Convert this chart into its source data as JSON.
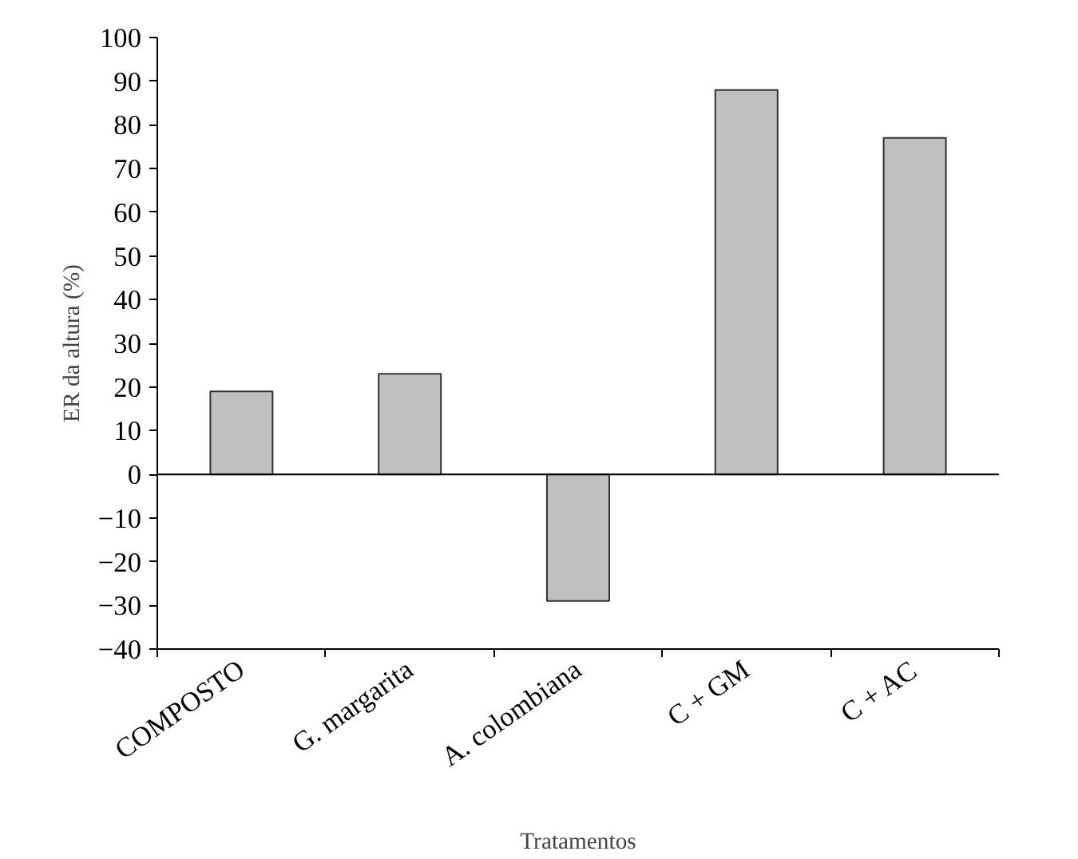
{
  "chart_data": {
    "type": "bar",
    "xlabel": "Tratamentos",
    "ylabel": "ER da altura (%)",
    "categories": [
      "COMPOSTO",
      "G. margarita",
      "A. colombiana",
      "C + GM",
      "C + AC"
    ],
    "values": [
      19,
      23,
      -29,
      88,
      77
    ],
    "colors": [
      "#c0c0c0",
      "#c0c0c0",
      "#c0c0c0",
      "#c0c0c0",
      "#c0c0c0"
    ],
    "ylim": [
      -40,
      100
    ],
    "yticks": [
      -40,
      -30,
      -20,
      -10,
      0,
      10,
      20,
      30,
      40,
      50,
      60,
      70,
      80,
      90,
      100
    ],
    "ref_lines": [
      {
        "axis": "y",
        "value": 0,
        "color": "#000000"
      }
    ],
    "grid": false
  }
}
